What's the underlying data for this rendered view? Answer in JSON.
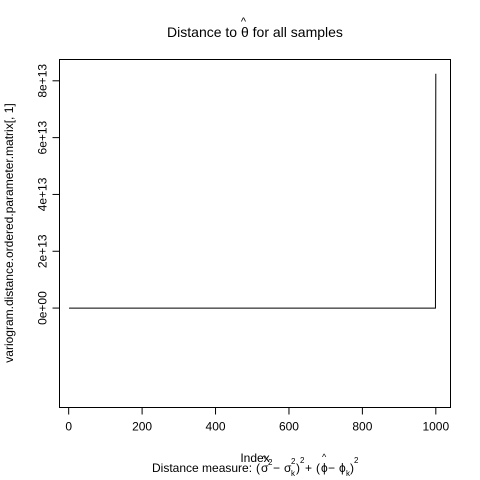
{
  "chart_data": {
    "type": "line",
    "title": {
      "prefix": "Distance to ",
      "symbol": "θ",
      "hat": "^",
      "suffix": " for all samples"
    },
    "xlabel": "Index",
    "ylabel": "variogram.distance.ordered.parameter.matrix[, 1]",
    "subtitle": {
      "prefix": "Distance measure: ",
      "sigma_hat": "σ",
      "hat": "^",
      "exp2": "2",
      "minus": " − ",
      "sigma_k": "σ",
      "sub_k": "k",
      "plus": " + ",
      "phi_hat": "ϕ",
      "phi_k": "ϕ"
    },
    "xlim": [
      -25,
      1040
    ],
    "ylim": [
      -35000000000000.0,
      87500000000000.0
    ],
    "x_ticks": [
      0,
      200,
      400,
      600,
      800,
      1000
    ],
    "y_ticks": [
      0,
      20000000000000.0,
      40000000000000.0,
      60000000000000.0,
      80000000000000.0
    ],
    "x_tick_labels": [
      "0",
      "200",
      "400",
      "600",
      "800",
      "1000"
    ],
    "y_tick_labels": [
      "0e+00",
      "2e+13",
      "4e+13",
      "6e+13",
      "8e+13"
    ],
    "series": [
      {
        "points": [
          [
            1,
            0
          ],
          [
            999,
            0
          ],
          [
            1000,
            82500000000000.0
          ]
        ]
      }
    ],
    "grid": false
  }
}
